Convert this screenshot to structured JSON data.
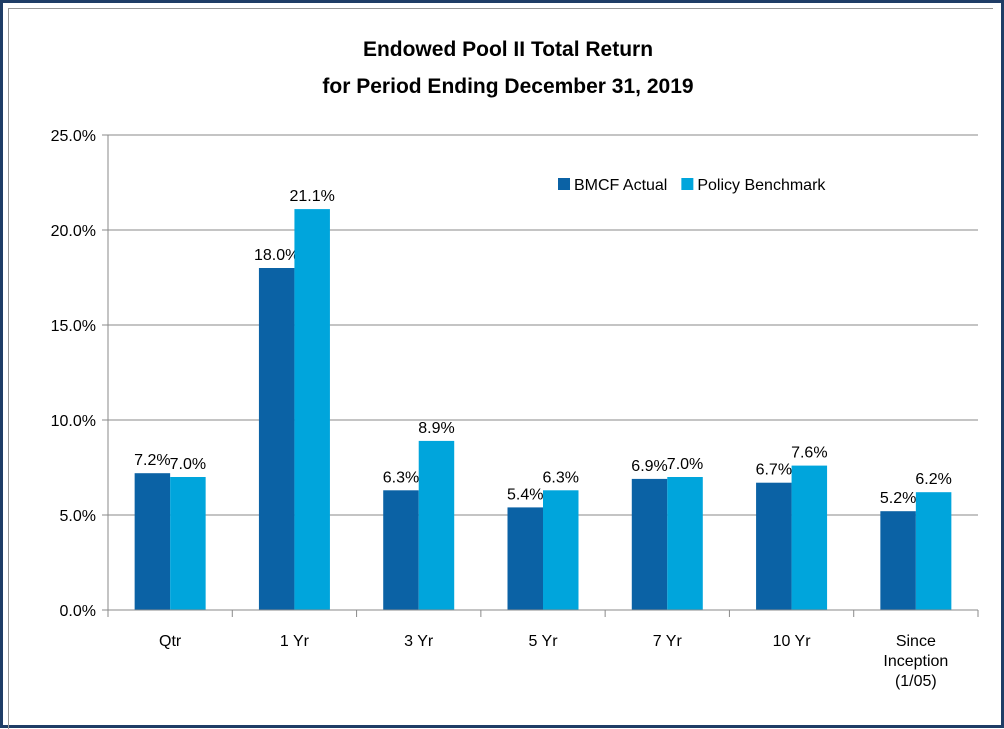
{
  "chart_data": {
    "type": "bar",
    "title": "Endowed Pool II Total Return",
    "subtitle": "for Period Ending December 31, 2019",
    "categories": [
      "Qtr",
      "1 Yr",
      "3 Yr",
      "5 Yr",
      "7 Yr",
      "10 Yr",
      "Since Inception (1/05)"
    ],
    "series": [
      {
        "name": "BMCF Actual",
        "color": "#0b62a5",
        "values": [
          7.2,
          18.0,
          6.3,
          5.4,
          6.9,
          6.7,
          5.2
        ],
        "value_labels": [
          "7.2%",
          "18.0%",
          "6.3%",
          "5.4%",
          "6.9%",
          "6.7%",
          "5.2%"
        ]
      },
      {
        "name": "Policy Benchmark",
        "color": "#00a5dc",
        "values": [
          7.0,
          21.1,
          8.9,
          6.3,
          7.0,
          7.6,
          6.2
        ],
        "value_labels": [
          "7.0%",
          "21.1%",
          "8.9%",
          "6.3%",
          "7.0%",
          "7.6%",
          "6.2%"
        ]
      }
    ],
    "ylim": [
      0,
      25
    ],
    "yticks": [
      {
        "value": 0,
        "label": "0.0%"
      },
      {
        "value": 5,
        "label": "5.0%"
      },
      {
        "value": 10,
        "label": "10.0%"
      },
      {
        "value": 15,
        "label": "15.0%"
      },
      {
        "value": 20,
        "label": "20.0%"
      },
      {
        "value": 25,
        "label": "25.0%"
      }
    ],
    "grid": true,
    "legend": "upper right"
  }
}
